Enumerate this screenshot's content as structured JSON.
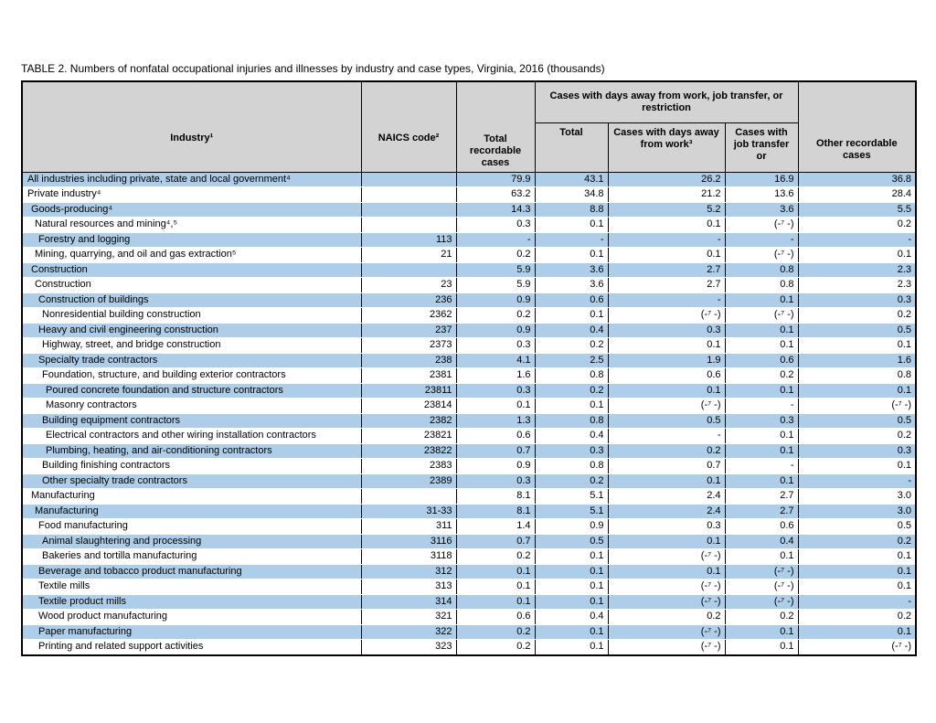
{
  "title": "TABLE 2. Numbers of nonfatal occupational injuries and illnesses by industry and case types, Virginia, 2016 (thousands)",
  "table": {
    "headers": {
      "industry": "Industry¹",
      "naics": "NAICS code²",
      "total_recordable": "Total recordable cases",
      "group": "Cases with days away from work, job transfer, or restriction",
      "group_total": "Total",
      "days_away": "Cases with days away from work³",
      "job_transfer": "Cases with job transfer or",
      "other_recordable": "Other recordable cases"
    },
    "colors": {
      "row_stripe_blue": "#aecde8",
      "header_gray": "#d3d3d3",
      "border_black": "#000000"
    },
    "footnote_symbol": "(-⁷ -)",
    "rows": [
      {
        "industry": "All industries including private, state and local government⁴",
        "indent": 0,
        "naics": "",
        "values": [
          "79.9",
          "43.1",
          "26.2",
          "16.9",
          "36.8"
        ]
      },
      {
        "industry": "Private industry⁴",
        "indent": 0,
        "naics": "",
        "values": [
          "63.2",
          "34.8",
          "21.2",
          "13.6",
          "28.4"
        ]
      },
      {
        "industry": "Goods-producing⁴",
        "indent": 1,
        "naics": "",
        "values": [
          "14.3",
          "8.8",
          "5.2",
          "3.6",
          "5.5"
        ]
      },
      {
        "industry": "Natural resources and mining⁴,⁵",
        "indent": 2,
        "naics": "",
        "values": [
          "0.3",
          "0.1",
          "0.1",
          "(-⁷ -)",
          "0.2"
        ]
      },
      {
        "industry": "Forestry and logging",
        "indent": 3,
        "naics": "113",
        "values": [
          "-",
          "-",
          "-",
          "-",
          "-"
        ]
      },
      {
        "industry": "Mining, quarrying, and oil and gas extraction⁵",
        "indent": 2,
        "naics": "21",
        "values": [
          "0.2",
          "0.1",
          "0.1",
          "(-⁷ -)",
          "0.1"
        ]
      },
      {
        "industry": "Construction",
        "indent": 1,
        "naics": "",
        "values": [
          "5.9",
          "3.6",
          "2.7",
          "0.8",
          "2.3"
        ]
      },
      {
        "industry": "Construction",
        "indent": 2,
        "naics": "23",
        "values": [
          "5.9",
          "3.6",
          "2.7",
          "0.8",
          "2.3"
        ]
      },
      {
        "industry": "Construction of buildings",
        "indent": 3,
        "naics": "236",
        "values": [
          "0.9",
          "0.6",
          "-",
          "0.1",
          "0.3"
        ]
      },
      {
        "industry": "Nonresidential building construction",
        "indent": 4,
        "naics": "2362",
        "values": [
          "0.2",
          "0.1",
          "(-⁷ -)",
          "(-⁷ -)",
          "0.2"
        ]
      },
      {
        "industry": "Heavy and civil engineering construction",
        "indent": 3,
        "naics": "237",
        "values": [
          "0.9",
          "0.4",
          "0.3",
          "0.1",
          "0.5"
        ]
      },
      {
        "industry": "Highway, street, and bridge construction",
        "indent": 4,
        "naics": "2373",
        "values": [
          "0.3",
          "0.2",
          "0.1",
          "0.1",
          "0.1"
        ]
      },
      {
        "industry": "Specialty trade contractors",
        "indent": 3,
        "naics": "238",
        "values": [
          "4.1",
          "2.5",
          "1.9",
          "0.6",
          "1.6"
        ]
      },
      {
        "industry": "Foundation, structure, and building exterior contractors",
        "indent": 4,
        "naics": "2381",
        "values": [
          "1.6",
          "0.8",
          "0.6",
          "0.2",
          "0.8"
        ]
      },
      {
        "industry": "Poured concrete foundation and structure contractors",
        "indent": 5,
        "naics": "23811",
        "values": [
          "0.3",
          "0.2",
          "0.1",
          "0.1",
          "0.1"
        ]
      },
      {
        "industry": "Masonry contractors",
        "indent": 5,
        "naics": "23814",
        "values": [
          "0.1",
          "0.1",
          "(-⁷ -)",
          "-",
          "(-⁷ -)"
        ]
      },
      {
        "industry": "Building equipment contractors",
        "indent": 4,
        "naics": "2382",
        "values": [
          "1.3",
          "0.8",
          "0.5",
          "0.3",
          "0.5"
        ]
      },
      {
        "industry": "Electrical contractors and other wiring installation contractors",
        "indent": 5,
        "naics": "23821",
        "values": [
          "0.6",
          "0.4",
          "-",
          "0.1",
          "0.2"
        ]
      },
      {
        "industry": "Plumbing, heating, and air-conditioning contractors",
        "indent": 5,
        "naics": "23822",
        "values": [
          "0.7",
          "0.3",
          "0.2",
          "0.1",
          "0.3"
        ]
      },
      {
        "industry": "Building finishing contractors",
        "indent": 4,
        "naics": "2383",
        "values": [
          "0.9",
          "0.8",
          "0.7",
          "-",
          "0.1"
        ]
      },
      {
        "industry": "Other specialty trade contractors",
        "indent": 4,
        "naics": "2389",
        "values": [
          "0.3",
          "0.2",
          "0.1",
          "0.1",
          "-"
        ]
      },
      {
        "industry": "Manufacturing",
        "indent": 1,
        "naics": "",
        "values": [
          "8.1",
          "5.1",
          "2.4",
          "2.7",
          "3.0"
        ]
      },
      {
        "industry": "Manufacturing",
        "indent": 2,
        "naics": "31-33",
        "values": [
          "8.1",
          "5.1",
          "2.4",
          "2.7",
          "3.0"
        ]
      },
      {
        "industry": "Food manufacturing",
        "indent": 3,
        "naics": "311",
        "values": [
          "1.4",
          "0.9",
          "0.3",
          "0.6",
          "0.5"
        ]
      },
      {
        "industry": "Animal slaughtering and processing",
        "indent": 4,
        "naics": "3116",
        "values": [
          "0.7",
          "0.5",
          "0.1",
          "0.4",
          "0.2"
        ]
      },
      {
        "industry": "Bakeries and tortilla manufacturing",
        "indent": 4,
        "naics": "3118",
        "values": [
          "0.2",
          "0.1",
          "(-⁷ -)",
          "0.1",
          "0.1"
        ]
      },
      {
        "industry": "Beverage and tobacco product manufacturing",
        "indent": 3,
        "naics": "312",
        "values": [
          "0.1",
          "0.1",
          "0.1",
          "(-⁷ -)",
          "0.1"
        ]
      },
      {
        "industry": "Textile mills",
        "indent": 3,
        "naics": "313",
        "values": [
          "0.1",
          "0.1",
          "(-⁷ -)",
          "(-⁷ -)",
          "0.1"
        ]
      },
      {
        "industry": "Textile product mills",
        "indent": 3,
        "naics": "314",
        "values": [
          "0.1",
          "0.1",
          "(-⁷ -)",
          "(-⁷ -)",
          "-"
        ]
      },
      {
        "industry": "Wood product manufacturing",
        "indent": 3,
        "naics": "321",
        "values": [
          "0.6",
          "0.4",
          "0.2",
          "0.2",
          "0.2"
        ]
      },
      {
        "industry": "Paper manufacturing",
        "indent": 3,
        "naics": "322",
        "values": [
          "0.2",
          "0.1",
          "(-⁷ -)",
          "0.1",
          "0.1"
        ]
      },
      {
        "industry": "Printing and related support activities",
        "indent": 3,
        "naics": "323",
        "values": [
          "0.2",
          "0.1",
          "(-⁷ -)",
          "0.1",
          "(-⁷ -)"
        ]
      }
    ]
  }
}
